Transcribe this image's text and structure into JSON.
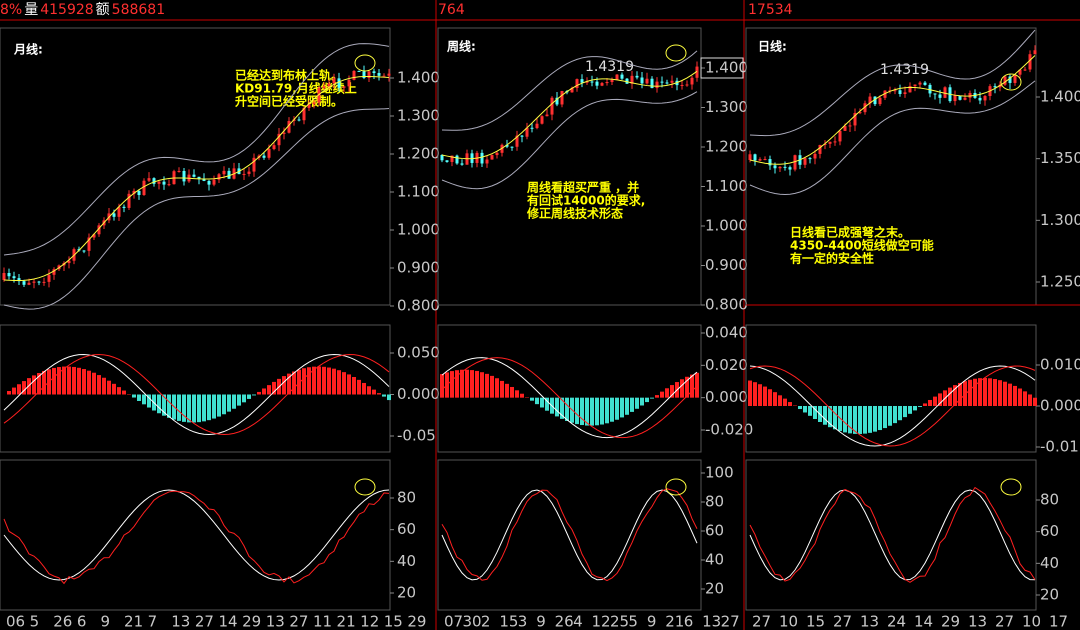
{
  "header": [
    [
      "8%",
      "量",
      "415928",
      "额",
      "588681"
    ],
    [
      "764"
    ],
    [
      "17534"
    ]
  ],
  "panels": [
    {
      "label": "月线:",
      "price_label": null,
      "price_ticks": [
        "1.400",
        "1.300",
        "1.200",
        "1.100",
        "1.000",
        "0.900",
        "0.800"
      ],
      "macd_ticks": [
        "0.050",
        "0.000",
        "-0.05"
      ],
      "kd_ticks": [
        "80",
        "60",
        "40",
        "20"
      ],
      "annotation": [
        "已经达到布林上轨。",
        "KD91.79,月线继续上",
        "升空间已经受限制。"
      ],
      "dates": [
        "06",
        "5",
        "26",
        "6",
        "9",
        "21",
        "7",
        "13",
        "27",
        "14",
        "29",
        "13",
        "27",
        "11",
        "21",
        "12",
        "15",
        "29"
      ]
    },
    {
      "label": "周线:",
      "price_label": "1.4319",
      "price_ticks": [
        "1.400",
        "1.300",
        "1.200",
        "1.100",
        "1.000",
        "0.900",
        "0.800"
      ],
      "macd_ticks": [
        "0.040",
        "0.020",
        "0.000",
        "-0.020"
      ],
      "kd_ticks": [
        "100",
        "80",
        "60",
        "40",
        "20"
      ],
      "annotation": [
        "周线看超买严重 ，并",
        "有回试14000的要求,",
        "修正周线技术形态"
      ],
      "dates": [
        "07",
        "30",
        "2",
        "15",
        "3",
        "9",
        "26",
        "4",
        "12",
        "25",
        "5",
        "9",
        "21",
        "6",
        "13",
        "27"
      ]
    },
    {
      "label": "日线:",
      "price_label": "1.4319",
      "price_ticks": [
        "1.400",
        "1.350",
        "1.300",
        "1.250"
      ],
      "macd_ticks": [
        "0.010",
        "0.000",
        "-0.01"
      ],
      "kd_ticks": [
        "80",
        "60",
        "40",
        "20"
      ],
      "annotation": [
        "日线看已成强弩之末。",
        "4350-4400短线做空可能",
        "有一定的安全性"
      ],
      "dates": [
        "27",
        "10",
        "15",
        "27",
        "13",
        "24",
        "14",
        "29",
        "13",
        "27",
        "10",
        "17"
      ]
    }
  ]
}
